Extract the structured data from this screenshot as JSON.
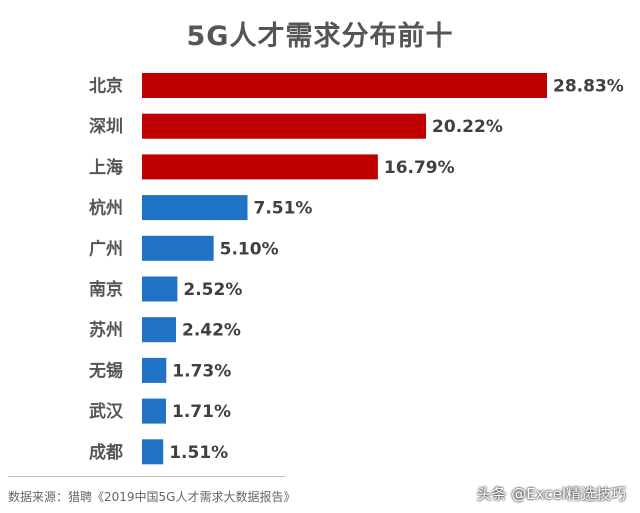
{
  "chart_data": {
    "type": "bar",
    "orientation": "horizontal",
    "title": "5G人才需求分布前十",
    "categories": [
      "北京",
      "深圳",
      "上海",
      "杭州",
      "广州",
      "南京",
      "苏州",
      "无锡",
      "武汉",
      "成都"
    ],
    "values": [
      28.83,
      20.22,
      16.79,
      7.51,
      5.1,
      2.52,
      2.42,
      1.73,
      1.71,
      1.51
    ],
    "value_labels": [
      "28.83%",
      "20.22%",
      "16.79%",
      "7.51%",
      "5.10%",
      "2.52%",
      "2.42%",
      "1.73%",
      "1.71%",
      "1.51%"
    ],
    "bar_colors": [
      "#c00000",
      "#c00000",
      "#c00000",
      "#1f72c4",
      "#1f72c4",
      "#1f72c4",
      "#1f72c4",
      "#1f72c4",
      "#1f72c4",
      "#1f72c4"
    ],
    "xlim": [
      0,
      28.83
    ],
    "xlabel": "",
    "ylabel": ""
  },
  "source_text": "数据来源：猎聘《2019中国5G人才需求大数据报告》",
  "watermark_text": "头条 @Excel精选技巧"
}
